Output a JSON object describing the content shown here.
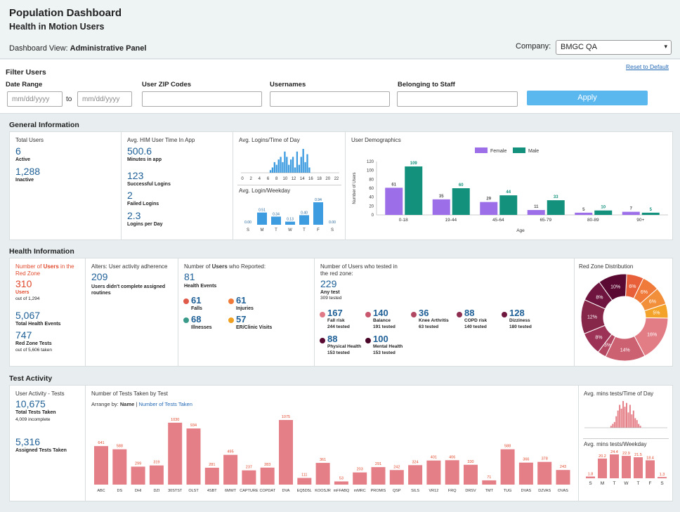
{
  "header": {
    "title": "Population Dashboard",
    "subtitle": "Health in Motion Users",
    "view_label": "Dashboard View:",
    "view_value": "Administrative Panel",
    "company_label": "Company:",
    "company_value": "BMGC QA"
  },
  "filter": {
    "title": "Filter Users",
    "reset": "Reset to Default",
    "date_range_label": "Date Range",
    "date_from_placeholder": "mm/dd/yyyy",
    "date_to_label": "to",
    "date_to_placeholder": "mm/dd/yyyy",
    "zip_label": "User ZIP Codes",
    "usernames_label": "Usernames",
    "staff_label": "Belonging to Staff",
    "apply": "Apply"
  },
  "general": {
    "title": "General Information",
    "total_users_label": "Total Users",
    "active_value": "6",
    "active_label": "Active",
    "inactive_value": "1,288",
    "inactive_label": "Inactive",
    "avg_time_label": "Avg. HIM User Time In App",
    "minutes_value": "500.6",
    "minutes_label": "Minutes in app",
    "success_value": "123",
    "success_label": "Successful Logins",
    "failed_value": "2",
    "failed_label": "Failed Logins",
    "perday_value": "2.3",
    "perday_label": "Logins per Day",
    "logins_tod_label": "Avg. Logins/Time of Day",
    "logins_weekday_label": "Avg. Login/Weekday",
    "demographics_label": "User Demographics"
  },
  "health": {
    "title": "Health Information",
    "redzone_label_a": "Number of ",
    "redzone_label_b": "Users",
    "redzone_label_c": " in the Red Zone",
    "redzone_value": "310",
    "redzone_users": "Users",
    "redzone_of": "out of 1,294",
    "events_value": "5,067",
    "events_label": "Total Health Events",
    "tests_value": "747",
    "tests_label": "Red Zone Tests",
    "tests_of": "out of 5,606 taken",
    "alerts_label": "Alters: User activity adherence",
    "alerts_value": "209",
    "alerts_sub": "Users didn't complete assigned routines",
    "reported_label_a": "Number of ",
    "reported_label_b": "Users",
    "reported_label_c": " who Reported:",
    "reported_value": "81",
    "reported_sub": "Health Events",
    "events": [
      {
        "value": "61",
        "label": "Falls",
        "color": "#e05a4a"
      },
      {
        "value": "61",
        "label": "Injuries",
        "color": "#f07a3a"
      },
      {
        "value": "68",
        "label": "Illnesses",
        "color": "#3a9a8a"
      },
      {
        "value": "57",
        "label": "ER/Clinic Visits",
        "color": "#f0a020"
      }
    ],
    "tested_label": "Number of Users who tested in the red zone:",
    "tested_value": "229",
    "tested_sub": "Any test",
    "tested_of": "309 tested",
    "tested_items": [
      {
        "value": "167",
        "label": "Fall risk",
        "sub": "244 tested",
        "color": "#e07a86"
      },
      {
        "value": "140",
        "label": "Balance",
        "sub": "191 tested",
        "color": "#c9586e"
      },
      {
        "value": "36",
        "label": "Knee Arthritis",
        "sub": "63 tested",
        "color": "#b04862"
      },
      {
        "value": "88",
        "label": "COPD risk",
        "sub": "140 tested",
        "color": "#8e2e50"
      },
      {
        "value": "128",
        "label": "Dizziness",
        "sub": "180 tested",
        "color": "#6e1840"
      },
      {
        "value": "88",
        "label": "Physical Health",
        "sub": "153 tested",
        "color": "#5a0a32"
      },
      {
        "value": "100",
        "label": "Mental Health",
        "sub": "153 tested",
        "color": "#4a0628"
      }
    ],
    "redzone_dist_label": "Red Zone Distribution"
  },
  "test_activity": {
    "title": "Test Activity",
    "user_activity_label": "User Activity - Tests",
    "total_value": "10,675",
    "total_label": "Total Tests Taken",
    "incomplete": "4,009 incomplete",
    "assigned_value": "5,316",
    "assigned_label": "Assigned Tests Taken",
    "num_tests_label": "Number of Tests Taken by Test",
    "arrange_label": "Arrange by:",
    "arrange_name": "Name",
    "arrange_sep": " | ",
    "arrange_num": "Number of Tests Taken",
    "avg_tod_label": "Avg. mins tests/Time of Day",
    "avg_weekday_label": "Avg. mins tests/Weekday"
  },
  "chart_data": [
    {
      "id": "logins_tod",
      "type": "bar",
      "title": "Avg. Logins/Time of Day",
      "x_ticks": [
        "0",
        "2",
        "4",
        "6",
        "8",
        "10",
        "12",
        "14",
        "16",
        "18",
        "20",
        "22"
      ],
      "values": [
        0,
        0,
        0,
        0,
        0,
        0,
        0,
        0,
        0,
        0,
        0,
        0,
        0,
        0,
        1,
        2,
        4,
        3,
        5,
        6,
        4,
        8,
        6,
        3,
        5,
        6,
        2,
        8,
        3,
        6,
        9,
        4,
        7,
        2,
        0,
        0,
        0,
        0,
        0,
        0,
        0,
        0,
        0,
        0,
        0,
        0,
        0,
        0
      ],
      "color": "#3d9be0"
    },
    {
      "id": "logins_weekday",
      "type": "bar",
      "title": "Avg. Login/Weekday",
      "categories": [
        "S",
        "M",
        "T",
        "W",
        "T",
        "F",
        "S"
      ],
      "values": [
        0.0,
        0.51,
        0.34,
        0.13,
        0.4,
        0.94,
        0.0
      ],
      "labels": [
        "0.00",
        "0.51",
        "0.34",
        "0.13",
        "0.40",
        "0.94",
        "0.00"
      ],
      "color": "#3d9be0"
    },
    {
      "id": "demographics",
      "type": "bar",
      "title": "User Demographics",
      "xlabel": "Age",
      "ylabel": "Number of Users",
      "ylim": [
        0,
        120
      ],
      "y_ticks": [
        "0",
        "20",
        "40",
        "60",
        "80",
        "100",
        "120"
      ],
      "categories": [
        "0-18",
        "19-44",
        "45-64",
        "65-79",
        "80-89",
        "90+"
      ],
      "series": [
        {
          "name": "Female",
          "color": "#9c6fe8",
          "values": [
            61,
            35,
            29,
            11,
            5,
            7
          ]
        },
        {
          "name": "Male",
          "color": "#13917d",
          "values": [
            109,
            60,
            44,
            33,
            10,
            5
          ]
        }
      ]
    },
    {
      "id": "redzone_dist",
      "type": "pie",
      "title": "Red Zone Distribution",
      "slices": [
        {
          "label": "6%",
          "value": 6,
          "color": "#e8603a"
        },
        {
          "label": "6%",
          "value": 6,
          "color": "#ef7a3a"
        },
        {
          "label": "6%",
          "value": 6,
          "color": "#f28f3a"
        },
        {
          "label": "5%",
          "value": 5,
          "color": "#f4a32a"
        },
        {
          "label": "16%",
          "value": 16,
          "color": "#e27d86"
        },
        {
          "label": "14%",
          "value": 14,
          "color": "#cc6172"
        },
        {
          "label": "3%",
          "value": 3,
          "color": "#b44762"
        },
        {
          "label": "8%",
          "value": 8,
          "color": "#9c3356"
        },
        {
          "label": "12%",
          "value": 12,
          "color": "#862649"
        },
        {
          "label": "8%",
          "value": 8,
          "color": "#6e143e"
        },
        {
          "label": "10%",
          "value": 10,
          "color": "#5a0a32"
        }
      ]
    },
    {
      "id": "tests_by_test",
      "type": "bar",
      "title": "Number of Tests Taken by Test",
      "categories": [
        "ABC",
        "DS",
        "DHI",
        "DZI",
        "30STST",
        "OLST",
        "4SBT",
        "6MWT",
        "CAPTURE",
        "COPDAT",
        "DVA",
        "EQ5D5L",
        "KOOSJR",
        "mFFABQ",
        "mMRC",
        "PROMIS",
        "QSP",
        "SILS",
        "VR12",
        "FRQ",
        "DRSV",
        "TMT",
        "TUG",
        "DVAS",
        "DZVAS",
        "OVAS"
      ],
      "values": [
        641,
        588,
        299,
        319,
        1030,
        934,
        281,
        495,
        237,
        283,
        1075,
        111,
        361,
        53,
        203,
        291,
        242,
        324,
        401,
        406,
        330,
        71,
        588,
        366,
        378,
        243
      ],
      "color": "#e57f87"
    },
    {
      "id": "avg_tod",
      "type": "bar",
      "title": "Avg. mins tests/Time of Day",
      "values": [
        0,
        0,
        0,
        0,
        0,
        0,
        0,
        0,
        0,
        0,
        0,
        0,
        0,
        0,
        0,
        1,
        2,
        3,
        6,
        9,
        12,
        10,
        14,
        11,
        13,
        8,
        12,
        7,
        9,
        5,
        4,
        2,
        1,
        0,
        0,
        0,
        0,
        0,
        0,
        0,
        0,
        0,
        0,
        0,
        0,
        0,
        0,
        0
      ],
      "color": "#e57f87"
    },
    {
      "id": "avg_weekday",
      "type": "bar",
      "title": "Avg. mins tests/Weekday",
      "categories": [
        "S",
        "M",
        "T",
        "W",
        "T",
        "F",
        "S"
      ],
      "values": [
        1.8,
        20.2,
        24.4,
        22.9,
        21.5,
        18.4,
        1.3
      ],
      "labels": [
        "1.8",
        "20.2",
        "24.4",
        "22.9",
        "21.5",
        "18.4",
        "1.3"
      ],
      "color": "#e57f87"
    }
  ]
}
